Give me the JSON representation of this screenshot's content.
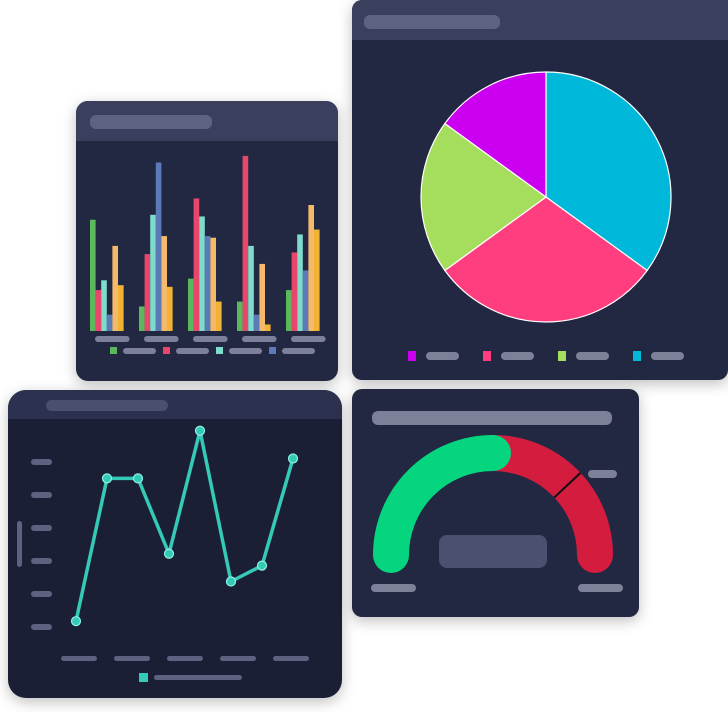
{
  "chart_data": [
    {
      "type": "bar",
      "title": "",
      "categories": [
        "",
        "",
        "",
        "",
        ""
      ],
      "series": [
        {
          "name": "",
          "color": "#5cb85c",
          "values": [
            68,
            15,
            32,
            18,
            25
          ]
        },
        {
          "name": "",
          "color": "#e8476b",
          "values": [
            25,
            47,
            81,
            107,
            48
          ]
        },
        {
          "name": "",
          "color": "#7fdccd",
          "values": [
            31,
            71,
            70,
            52,
            59
          ]
        },
        {
          "name": "",
          "color": "#5a7bb8",
          "values": [
            10,
            103,
            58,
            10,
            37
          ]
        },
        {
          "name": "",
          "color": "#f5b96a",
          "values": [
            52,
            58,
            57,
            41,
            77
          ]
        },
        {
          "name": "",
          "color": "#f2b233",
          "values": [
            28,
            27,
            18,
            4,
            62
          ]
        }
      ],
      "ylim": [
        0,
        110
      ],
      "legend": {
        "placement": "bottom",
        "colors": [
          "#5cb85c",
          "#e8476b",
          "#7fdccd",
          "#5a7bb8"
        ]
      }
    },
    {
      "type": "pie",
      "title": "",
      "slices": [
        {
          "label": "",
          "value": 35,
          "color": "#00b8d9"
        },
        {
          "label": "",
          "value": 30,
          "color": "#ff3e7f"
        },
        {
          "label": "",
          "value": 20,
          "color": "#a5dd5c"
        },
        {
          "label": "",
          "value": 15,
          "color": "#cc00f0"
        }
      ],
      "legend": {
        "placement": "bottom",
        "colors": [
          "#cc00f0",
          "#ff3e7f",
          "#a5dd5c",
          "#00b8d9"
        ]
      }
    },
    {
      "type": "line",
      "title": "",
      "x": [
        0,
        1,
        2,
        3,
        4,
        5,
        6,
        7
      ],
      "series": [
        {
          "name": "",
          "color": "#35c9b7",
          "values": [
            5,
            41,
            41,
            22,
            53,
            15,
            19,
            46
          ]
        }
      ],
      "ylim": [
        0,
        60
      ],
      "legend": {
        "placement": "bottom",
        "colors": [
          "#35c9b7"
        ]
      }
    },
    {
      "type": "gauge",
      "title": "",
      "value": 0.5,
      "marker": 0.76,
      "bands": [
        {
          "from": 0,
          "to": 0.5,
          "color": "#06d57f"
        },
        {
          "from": 0.5,
          "to": 1,
          "color": "#d41c3f"
        }
      ]
    }
  ]
}
